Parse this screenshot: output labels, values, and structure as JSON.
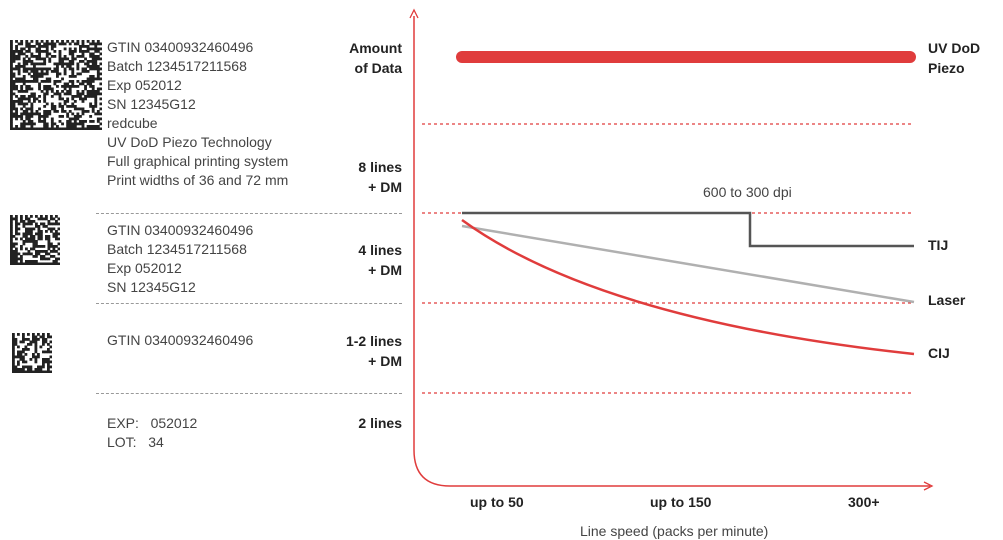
{
  "amount_heading": [
    "Amount",
    "of Data"
  ],
  "tiers": [
    {
      "id": "tier-8",
      "label": [
        "8 lines",
        "+ DM"
      ],
      "lines": [
        "GTIN 03400932460496",
        "Batch 1234517211568",
        "Exp 052012",
        "SN 12345G12",
        "redcube",
        "UV DoD Piezo Technology",
        "Full graphical printing system",
        "Print widths of 36 and 72 mm"
      ]
    },
    {
      "id": "tier-4",
      "label": [
        "4 lines",
        "+ DM"
      ],
      "lines": [
        "GTIN 03400932460496",
        "Batch 1234517211568",
        "Exp 052012",
        "SN 12345G12"
      ]
    },
    {
      "id": "tier-12",
      "label": [
        "1-2 lines",
        "+ DM"
      ],
      "lines": [
        "GTIN 03400932460496"
      ]
    },
    {
      "id": "tier-2",
      "label": [
        "2 lines"
      ],
      "lines": [
        "EXP:   052012",
        "LOT:   34"
      ]
    }
  ],
  "x_ticks": [
    "up to 50",
    "up to 150",
    "300+"
  ],
  "x_label": "Line speed (packs per minute)",
  "annotation": "600 to 300 dpi",
  "tech": {
    "uv": [
      "UV DoD",
      "Piezo"
    ],
    "tij": "TIJ",
    "laser": "Laser",
    "cij": "CIJ"
  },
  "colors": {
    "red": "#e03c3c",
    "dark_gray": "#555555",
    "light_gray": "#b0b0b0",
    "dashed_gray": "#999999"
  }
}
